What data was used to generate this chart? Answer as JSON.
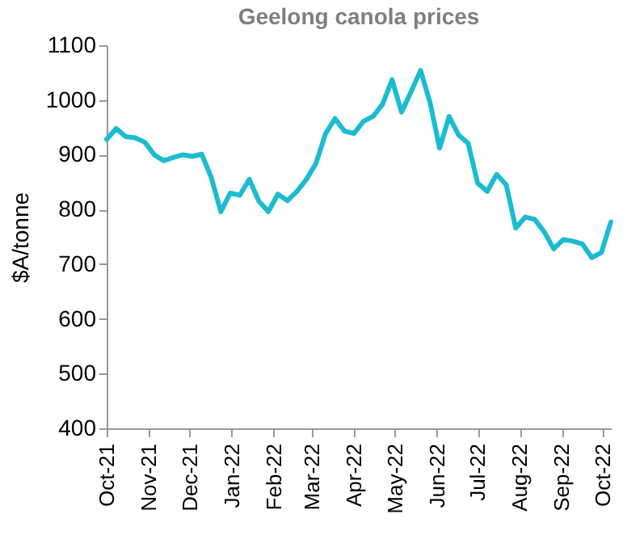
{
  "chart_data": {
    "type": "line",
    "title": "Geelong canola prices",
    "ylabel": "$A/tonne",
    "x": [
      "2021-10-01",
      "2021-10-08",
      "2021-10-15",
      "2021-10-22",
      "2021-10-29",
      "2021-11-05",
      "2021-11-12",
      "2021-11-19",
      "2021-11-26",
      "2021-12-03",
      "2021-12-10",
      "2021-12-17",
      "2021-12-24",
      "2021-12-31",
      "2022-01-07",
      "2022-01-14",
      "2022-01-21",
      "2022-01-28",
      "2022-02-04",
      "2022-02-11",
      "2022-02-18",
      "2022-02-25",
      "2022-03-04",
      "2022-03-11",
      "2022-03-18",
      "2022-03-25",
      "2022-04-01",
      "2022-04-08",
      "2022-04-15",
      "2022-04-22",
      "2022-04-29",
      "2022-05-06",
      "2022-05-13",
      "2022-05-20",
      "2022-05-27",
      "2022-06-03",
      "2022-06-10",
      "2022-06-17",
      "2022-06-24",
      "2022-07-01",
      "2022-07-08",
      "2022-07-15",
      "2022-07-22",
      "2022-07-29",
      "2022-08-05",
      "2022-08-12",
      "2022-08-19",
      "2022-08-26",
      "2022-09-02",
      "2022-09-09",
      "2022-09-16",
      "2022-09-23",
      "2022-09-30",
      "2022-10-07"
    ],
    "series": [
      {
        "color": "#1bbccf",
        "values": [
          928,
          948,
          933,
          931,
          923,
          900,
          889,
          895,
          900,
          897,
          901,
          858,
          796,
          830,
          826,
          855,
          815,
          796,
          828,
          816,
          833,
          855,
          884,
          938,
          966,
          943,
          939,
          961,
          970,
          992,
          1037,
          978,
          1015,
          1054,
          995,
          912,
          970,
          936,
          921,
          848,
          833,
          864,
          845,
          766,
          786,
          782,
          759,
          728,
          745,
          742,
          737,
          712,
          721,
          777
        ]
      }
    ],
    "xlim": [
      "2021-10-01",
      "2022-10-07"
    ],
    "xticks": [
      {
        "value": "2021-10-01",
        "label": "Oct-21"
      },
      {
        "value": "2021-11-01",
        "label": "Nov-21"
      },
      {
        "value": "2021-12-01",
        "label": "Dec-21"
      },
      {
        "value": "2022-01-01",
        "label": "Jan-22"
      },
      {
        "value": "2022-02-01",
        "label": "Feb-22"
      },
      {
        "value": "2022-03-01",
        "label": "Mar-22"
      },
      {
        "value": "2022-04-01",
        "label": "Apr-22"
      },
      {
        "value": "2022-05-01",
        "label": "May-22"
      },
      {
        "value": "2022-06-01",
        "label": "Jun-22"
      },
      {
        "value": "2022-07-01",
        "label": "Jul-22"
      },
      {
        "value": "2022-08-01",
        "label": "Aug-22"
      },
      {
        "value": "2022-09-01",
        "label": "Sep-22"
      },
      {
        "value": "2022-10-01",
        "label": "Oct-22"
      }
    ],
    "ylim": [
      400,
      1100
    ],
    "yticks": [
      400,
      500,
      600,
      700,
      800,
      900,
      1000,
      1100
    ],
    "grid": false,
    "marker": "none",
    "line_style": "solid"
  }
}
